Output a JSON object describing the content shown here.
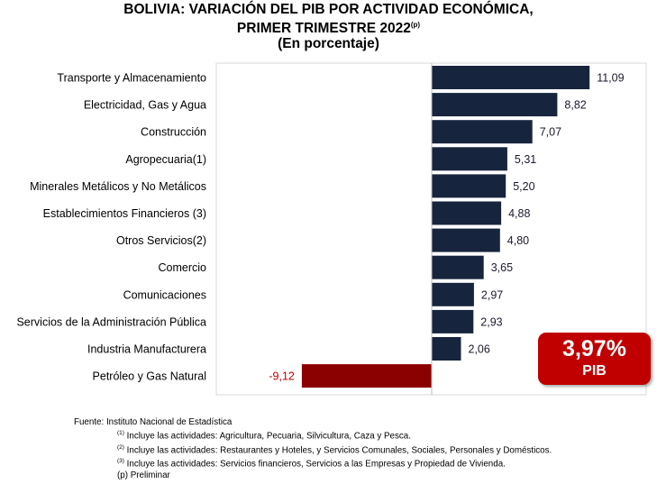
{
  "title": {
    "line1": "BOLIVIA: VARIACIÓN DEL PIB POR ACTIVIDAD ECONÓMICA,",
    "line2": "PRIMER TRIMESTRE 2022",
    "line2_sup": "(p)",
    "line3": "(En porcentaje)"
  },
  "chart_data": {
    "type": "bar",
    "orientation": "horizontal",
    "categories": [
      "Transporte y Almacenamiento",
      "Electricidad, Gas y Agua",
      "Construcción",
      "Agropecuaria(1)",
      "Minerales Metálicos y No Metálicos",
      "Establecimientos Financieros (3)",
      "Otros Servicios(2)",
      "Comercio",
      "Comunicaciones",
      "Servicios de la Administración Pública",
      "Industria Manufacturera",
      "Petróleo y Gas Natural"
    ],
    "values": [
      11.09,
      8.82,
      7.07,
      5.31,
      5.2,
      4.88,
      4.8,
      3.65,
      2.97,
      2.93,
      2.06,
      -9.12
    ],
    "value_labels": [
      "11,09",
      "8,82",
      "7,07",
      "5,31",
      "5,20",
      "4,88",
      "4,80",
      "3,65",
      "2,97",
      "2,93",
      "2,06",
      "-9,12"
    ],
    "xlim": [
      -15,
      15
    ],
    "grid": false,
    "colors": {
      "positive": "#17243d",
      "negative": "#8b0000",
      "negative_label": "#c00000"
    }
  },
  "pib_box": {
    "value": "3,97%",
    "label": "PIB",
    "color": "#c00000"
  },
  "notes": {
    "source": "Fuente: Instituto Nacional de Estadística",
    "note1_marker": "(1)",
    "note1": " Incluye las actividades: Agricultura, Pecuaria, Silvicultura, Caza y Pesca.",
    "note2_marker": "(2)",
    "note2": " Incluye las actividades: Restaurantes y Hoteles, y Servicios Comunales, Sociales, Personales y Domésticos.",
    "note3_marker": "(3)",
    "note3": " Incluye las actividades: Servicios financieros, Servicios a las Empresas y Propiedad de Vivienda.",
    "preliminary": "(p) Preliminar"
  }
}
